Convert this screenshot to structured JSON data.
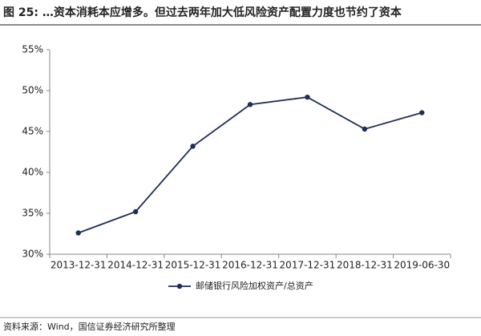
{
  "chart_data": {
    "type": "line",
    "title": "图 25: …资本消耗本应增多。但过去两年加大低风险资产配置力度也节约了资本",
    "categories": [
      "2013-12-31",
      "2014-12-31",
      "2015-12-31",
      "2016-12-31",
      "2017-12-31",
      "2018-12-31",
      "2019-06-30"
    ],
    "series": [
      {
        "name": "邮储银行风险加权资产/总资产",
        "color": "#1f2d5a",
        "values": [
          32.6,
          35.2,
          43.2,
          48.3,
          49.2,
          45.3,
          47.3
        ]
      }
    ],
    "ylim": [
      30,
      55
    ],
    "yticks": [
      {
        "value": 30,
        "label": "30%"
      },
      {
        "value": 35,
        "label": "35%"
      },
      {
        "value": 40,
        "label": "40%"
      },
      {
        "value": 45,
        "label": "45%"
      },
      {
        "value": 50,
        "label": "50%"
      },
      {
        "value": 55,
        "label": "55%"
      }
    ],
    "grid": false,
    "legend": "bottom",
    "source": "资料来源：Wind，国信证券经济研究所整理"
  }
}
